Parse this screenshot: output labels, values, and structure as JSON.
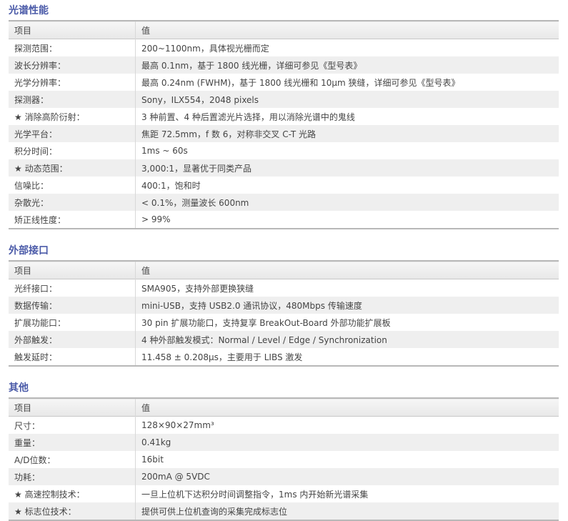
{
  "header": {
    "col1": "项目",
    "col2": "值"
  },
  "sections": [
    {
      "title": "光谱性能",
      "rows": [
        [
          "探测范围：",
          "200~1100nm，具体视光栅而定"
        ],
        [
          "波长分辨率：",
          "最高 0.1nm，基于 1800 线光栅，详细可参见《型号表》"
        ],
        [
          "光学分辨率：",
          "最高 0.24nm (FWHM)，基于 1800 线光栅和 10μm 狭缝，详细可参见《型号表》"
        ],
        [
          "探测器：",
          "Sony，ILX554，2048 pixels"
        ],
        [
          "★ 消除高阶衍射：",
          "3 种前置、4 种后置滤光片选择，用以消除光谱中的鬼线"
        ],
        [
          "光学平台：",
          "焦距 72.5mm，f 数 6，对称非交叉 C-T 光路"
        ],
        [
          "积分时间：",
          "1ms ~ 60s"
        ],
        [
          "★ 动态范围：",
          "3,000:1，显著优于同类产品"
        ],
        [
          "信噪比：",
          "400:1，饱和时"
        ],
        [
          "杂散光：",
          "< 0.1%，测量波长 600nm"
        ],
        [
          "矫正线性度：",
          "> 99%"
        ]
      ]
    },
    {
      "title": "外部接口",
      "rows": [
        [
          "光纤接口：",
          "SMA905，支持外部更换狭缝"
        ],
        [
          "数据传输：",
          "mini-USB，支持 USB2.0 通讯协议，480Mbps 传输速度"
        ],
        [
          "扩展功能口：",
          "30 pin 扩展功能口，支持复享 BreakOut-Board 外部功能扩展板"
        ],
        [
          "外部触发：",
          "4 种外部触发模式：Normal / Level / Edge / Synchronization"
        ],
        [
          "触发延时：",
          "11.458 ± 0.208μs，主要用于 LIBS 激发"
        ]
      ]
    },
    {
      "title": "其他",
      "rows": [
        [
          "尺寸：",
          "128×90×27mm³"
        ],
        [
          "重量：",
          "0.41kg"
        ],
        [
          "A/D位数：",
          "16bit"
        ],
        [
          "功耗：",
          "200mA @ 5VDC"
        ],
        [
          "★ 高速控制技术：",
          "一旦上位机下达积分时间调整指令，1ms 内开始新光谱采集"
        ],
        [
          "★ 标志位技术：",
          "提供可供上位机查询的采集完成标志位"
        ]
      ]
    }
  ]
}
